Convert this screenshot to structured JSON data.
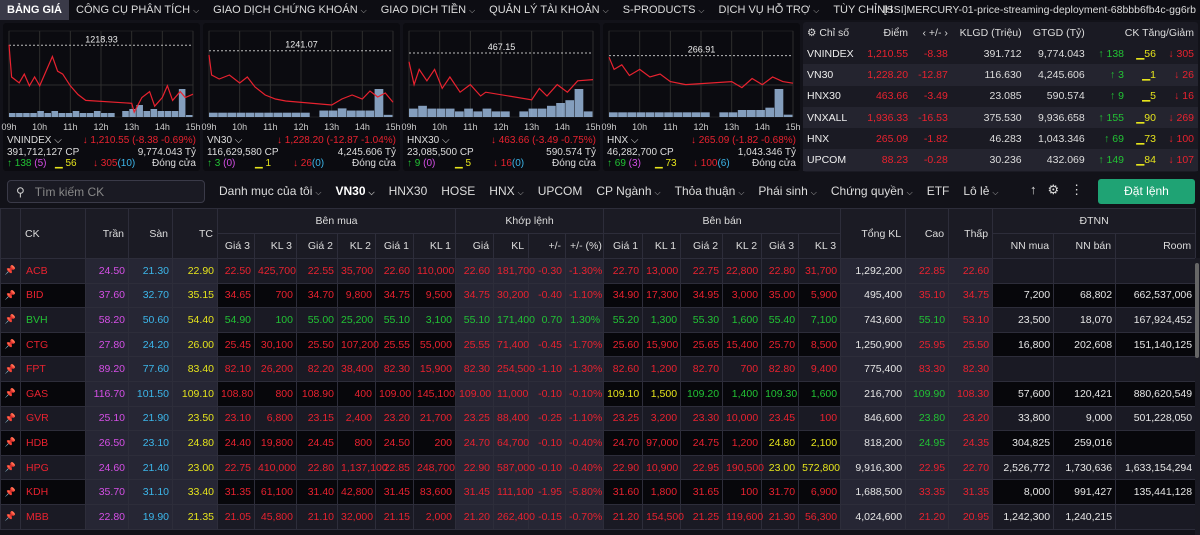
{
  "nav": {
    "items": [
      {
        "label": "BẢNG GIÁ",
        "active": true,
        "menu": false
      },
      {
        "label": "CÔNG CỤ PHÂN TÍCH",
        "menu": true
      },
      {
        "label": "GIAO DỊCH CHỨNG KHOÁN",
        "menu": true
      },
      {
        "label": "GIAO DỊCH TIỀN",
        "menu": true
      },
      {
        "label": "QUẢN LÝ TÀI KHOẢN",
        "menu": true
      },
      {
        "label": "S-PRODUCTS",
        "menu": true
      },
      {
        "label": "DỊCH VỤ HỖ TRỢ",
        "menu": true
      },
      {
        "label": "TÙY CHỈNH",
        "menu": false
      }
    ],
    "server": "[SSI]MERCURY-01-price-streaming-deployment-68bbb6fb4c-gg6rb"
  },
  "colors": {
    "up": "#22c234",
    "down": "#e8222f",
    "ref": "#e6e41c",
    "ceil": "#d54fe6",
    "floor": "#3cb6ea",
    "volume": "#9ab8dc",
    "accent": "#1fa374"
  },
  "charts": [
    {
      "name": "VNINDEX",
      "ref": 1218.93,
      "ref_label": "1218.93",
      "ymin": 1207,
      "ymax": 1220,
      "points": [
        [
          "09:00",
          1219
        ],
        [
          "09:05",
          1213.5
        ],
        [
          "09:20",
          1212.5
        ],
        [
          "09:30",
          1214
        ],
        [
          "09:40",
          1212
        ],
        [
          "09:50",
          1213.5
        ],
        [
          "10:00",
          1212
        ],
        [
          "10:15",
          1215
        ],
        [
          "10:25",
          1217
        ],
        [
          "10:35",
          1214.5
        ],
        [
          "10:45",
          1214
        ],
        [
          "11:00",
          1212
        ],
        [
          "11:15",
          1210.5
        ],
        [
          "11:30",
          1209.5
        ],
        [
          "13:00",
          1209
        ],
        [
          "13:05",
          1207.5
        ],
        [
          "13:20",
          1210
        ],
        [
          "13:35",
          1211
        ],
        [
          "13:45",
          1208.5
        ],
        [
          "14:00",
          1210
        ],
        [
          "14:10",
          1212
        ],
        [
          "14:20",
          1209.5
        ],
        [
          "14:35",
          1211
        ],
        [
          "14:45",
          1210
        ],
        [
          "15:00",
          1210.55
        ]
      ],
      "volume": [
        2,
        2,
        2,
        2,
        3,
        2,
        3,
        2,
        2,
        3,
        2,
        2,
        3,
        2,
        2,
        0,
        3,
        4,
        6,
        3,
        4,
        3,
        3,
        3,
        14,
        1
      ],
      "label": "VNINDEX",
      "change": "↓ 1,210.55 (-8.38 -0.69%)",
      "volume_text": "391,712,127 CP",
      "value_text": "9,774.043 Tỷ",
      "up": "↑ 138",
      "up_ceil": "(5)",
      "flat": "56",
      "down": "↓ 305",
      "down_floor": "(10)",
      "status": "Đóng cửa"
    },
    {
      "name": "VN30",
      "ref": 1241.07,
      "ref_label": "1241.07",
      "ymin": 1225,
      "ymax": 1244,
      "points": [
        [
          "09:00",
          1240
        ],
        [
          "09:05",
          1235
        ],
        [
          "09:20",
          1234
        ],
        [
          "09:40",
          1235
        ],
        [
          "10:00",
          1233
        ],
        [
          "10:15",
          1234.5
        ],
        [
          "10:30",
          1232
        ],
        [
          "10:50",
          1230
        ],
        [
          "11:10",
          1229
        ],
        [
          "11:30",
          1228.5
        ],
        [
          "13:00",
          1227.5
        ],
        [
          "13:20",
          1229
        ],
        [
          "13:40",
          1230
        ],
        [
          "14:00",
          1229
        ],
        [
          "14:15",
          1231
        ],
        [
          "14:30",
          1229.5
        ],
        [
          "14:45",
          1230.5
        ],
        [
          "15:00",
          1228.2
        ]
      ],
      "volume": [
        2,
        2,
        2,
        2,
        2,
        2,
        2,
        2,
        2,
        2,
        2,
        0,
        3,
        3,
        4,
        3,
        3,
        3,
        13,
        1
      ],
      "label": "VN30",
      "change": "↓ 1,228.20 (-12.87 -1.04%)",
      "volume_text": "116,629,580 CP",
      "value_text": "4,245.606 Tỷ",
      "up": "↑ 3",
      "up_ceil": "(0)",
      "flat": "1",
      "down": "↓ 26",
      "down_floor": "(0)",
      "status": "Đóng cửa"
    },
    {
      "name": "HNX30",
      "ref": 467.15,
      "ref_label": "467.15",
      "ymin": 459,
      "ymax": 469,
      "points": [
        [
          "09:00",
          466
        ],
        [
          "09:10",
          463
        ],
        [
          "09:20",
          465
        ],
        [
          "09:35",
          463.5
        ],
        [
          "09:50",
          465
        ],
        [
          "10:05",
          462.5
        ],
        [
          "10:20",
          464
        ],
        [
          "10:40",
          462
        ],
        [
          "11:00",
          463
        ],
        [
          "11:20",
          461.5
        ],
        [
          "11:30",
          462
        ],
        [
          "13:00",
          461
        ],
        [
          "13:15",
          462.5
        ],
        [
          "13:30",
          461.5
        ],
        [
          "13:50",
          463
        ],
        [
          "14:10",
          462
        ],
        [
          "14:30",
          463.5
        ],
        [
          "15:00",
          463.66
        ]
      ],
      "volume": [
        3,
        4,
        3,
        3,
        3,
        2,
        3,
        2,
        3,
        2,
        2,
        0,
        2,
        3,
        3,
        4,
        5,
        6,
        10,
        2
      ],
      "label": "HNX30",
      "change": "↓ 463.66 (-3.49 -0.75%)",
      "volume_text": "23,085,500 CP",
      "value_text": "590.574 Tỷ",
      "up": "↑ 9",
      "up_ceil": "(0)",
      "flat": "5",
      "down": "↓ 16",
      "down_floor": "(0)",
      "status": "Đóng cửa"
    },
    {
      "name": "HNX",
      "ref": 266.91,
      "ref_label": "266.91",
      "ymin": 263,
      "ymax": 268,
      "points": [
        [
          "09:00",
          266.8
        ],
        [
          "09:10",
          266
        ],
        [
          "09:25",
          266.3
        ],
        [
          "09:40",
          265.6
        ],
        [
          "10:00",
          266
        ],
        [
          "10:20",
          265.5
        ],
        [
          "10:40",
          265.7
        ],
        [
          "11:00",
          265.2
        ],
        [
          "11:30",
          265
        ],
        [
          "13:00",
          265.2
        ],
        [
          "13:20",
          264.8
        ],
        [
          "13:40",
          265.4
        ],
        [
          "14:00",
          265
        ],
        [
          "14:20",
          265.5
        ],
        [
          "14:40",
          265.2
        ],
        [
          "15:00",
          265.09
        ]
      ],
      "volume": [
        2,
        2,
        2,
        2,
        2,
        2,
        2,
        2,
        2,
        2,
        2,
        0,
        2,
        2,
        3,
        3,
        3,
        4,
        12,
        1
      ],
      "label": "HNX",
      "change": "↓ 265.09 (-1.82 -0.68%)",
      "volume_text": "46,282,700 CP",
      "value_text": "1,043.346 Tỷ",
      "up": "↑ 69",
      "up_ceil": "(3)",
      "flat": "73",
      "down": "↓ 100",
      "down_floor": "(6)",
      "status": "Đóng cửa"
    }
  ],
  "chart_hours": [
    "09h",
    "10h",
    "11h",
    "12h",
    "13h",
    "14h",
    "15h"
  ],
  "indices": {
    "headers": [
      "Chỉ số",
      "Điểm",
      "‹ +/- ›",
      "KLGD (Triệu)",
      "GTGD (Tỷ)",
      "CK Tăng/Giảm"
    ],
    "rows": [
      {
        "name": "VNINDEX",
        "point": "1,210.55",
        "change": "-8.38",
        "volume": "391.712",
        "value": "9,774.043",
        "up": "↑ 138",
        "flat": "56",
        "down": "↓ 305"
      },
      {
        "name": "VN30",
        "point": "1,228.20",
        "change": "-12.87",
        "volume": "116.630",
        "value": "4,245.606",
        "up": "↑ 3",
        "flat": "1",
        "down": "↓ 26"
      },
      {
        "name": "HNX30",
        "point": "463.66",
        "change": "-3.49",
        "volume": "23.085",
        "value": "590.574",
        "up": "↑ 9",
        "flat": "5",
        "down": "↓ 16"
      },
      {
        "name": "VNXALL",
        "point": "1,936.33",
        "change": "-16.53",
        "volume": "375.530",
        "value": "9,936.658",
        "up": "↑ 155",
        "flat": "90",
        "down": "↓ 269"
      },
      {
        "name": "HNX",
        "point": "265.09",
        "change": "-1.82",
        "volume": "46.283",
        "value": "1,043.346",
        "up": "↑ 69",
        "flat": "73",
        "down": "↓ 100"
      },
      {
        "name": "UPCOM",
        "point": "88.23",
        "change": "-0.28",
        "volume": "30.236",
        "value": "432.069",
        "up": "↑ 149",
        "flat": "84",
        "down": "↓ 107"
      }
    ]
  },
  "toolbar": {
    "search_placeholder": "Tìm kiếm CK",
    "tabs": [
      {
        "label": "Danh mục của tôi",
        "menu": true
      },
      {
        "label": "VN30",
        "menu": true,
        "active": true
      },
      {
        "label": "HNX30"
      },
      {
        "label": "HOSE"
      },
      {
        "label": "HNX",
        "menu": true
      },
      {
        "label": "UPCOM"
      },
      {
        "label": "CP Ngành",
        "menu": true
      },
      {
        "label": "Thỏa thuận",
        "menu": true
      },
      {
        "label": "Phái sinh",
        "menu": true
      },
      {
        "label": "Chứng quyền",
        "menu": true
      },
      {
        "label": "ETF"
      },
      {
        "label": "Lô lẻ",
        "menu": true
      }
    ],
    "order_label": "Đặt lệnh"
  },
  "board": {
    "groups": {
      "ck": "CK",
      "ceil": "Trần",
      "floor": "Sàn",
      "ref": "TC",
      "bid": "Bên mua",
      "match": "Khớp lệnh",
      "ask": "Bên bán",
      "total": "Tổng KL",
      "high": "Cao",
      "low": "Thấp",
      "foreign": "ĐTNN"
    },
    "bid_cols": [
      "Giá 3",
      "KL 3",
      "Giá 2",
      "KL 2",
      "Giá 1",
      "KL 1"
    ],
    "match_cols": [
      "Giá",
      "KL",
      "+/-",
      "+/- (%)"
    ],
    "ask_cols": [
      "Giá 1",
      "KL 1",
      "Giá 2",
      "KL 2",
      "Giá 3",
      "KL 3"
    ],
    "foreign_cols": [
      "NN mua",
      "NN bán",
      "Room"
    ],
    "rows": [
      {
        "sym": "ACB",
        "c": "down",
        "ceil": "24.50",
        "floor": "21.30",
        "ref": "22.90",
        "bid": [
          "22.50",
          "425,700",
          "22.55",
          "35,700",
          "22.60",
          "110,000"
        ],
        "match": [
          "22.60",
          "181,700",
          "-0.30",
          "-1.30%"
        ],
        "ask": [
          "22.70",
          "13,000",
          "22.75",
          "22,800",
          "22.80",
          "31,700"
        ],
        "total": "1,292,200",
        "high": "22.85",
        "high_c": "down",
        "low": "22.60",
        "low_c": "down",
        "nn": [
          "",
          "",
          ""
        ]
      },
      {
        "sym": "BID",
        "c": "down",
        "ceil": "37.60",
        "floor": "32.70",
        "ref": "35.15",
        "bid": [
          "34.65",
          "700",
          "34.70",
          "9,800",
          "34.75",
          "9,500"
        ],
        "match": [
          "34.75",
          "30,200",
          "-0.40",
          "-1.10%"
        ],
        "ask": [
          "34.90",
          "17,300",
          "34.95",
          "3,000",
          "35.00",
          "5,900"
        ],
        "total": "495,400",
        "high": "35.10",
        "high_c": "down",
        "low": "34.75",
        "low_c": "down",
        "nn": [
          "7,200",
          "68,802",
          "662,537,006"
        ]
      },
      {
        "sym": "BVH",
        "c": "up",
        "ceil": "58.20",
        "floor": "50.60",
        "ref": "54.40",
        "bid": [
          "54.90",
          "100",
          "55.00",
          "25,200",
          "55.10",
          "3,100"
        ],
        "match": [
          "55.10",
          "171,400",
          "0.70",
          "1.30%"
        ],
        "ask": [
          "55.20",
          "1,300",
          "55.30",
          "1,600",
          "55.40",
          "7,100"
        ],
        "total": "743,600",
        "high": "55.10",
        "high_c": "up",
        "low": "53.10",
        "low_c": "down",
        "nn": [
          "23,500",
          "18,070",
          "167,924,452"
        ]
      },
      {
        "sym": "CTG",
        "c": "down",
        "ceil": "27.80",
        "floor": "24.20",
        "ref": "26.00",
        "bid": [
          "25.45",
          "30,100",
          "25.50",
          "107,200",
          "25.55",
          "55,000"
        ],
        "match": [
          "25.55",
          "71,400",
          "-0.45",
          "-1.70%"
        ],
        "ask": [
          "25.60",
          "15,900",
          "25.65",
          "15,400",
          "25.70",
          "8,500"
        ],
        "total": "1,250,900",
        "high": "25.95",
        "high_c": "down",
        "low": "25.50",
        "low_c": "down",
        "nn": [
          "16,800",
          "202,608",
          "151,140,125"
        ]
      },
      {
        "sym": "FPT",
        "c": "down",
        "ceil": "89.20",
        "floor": "77.60",
        "ref": "83.40",
        "bid": [
          "82.10",
          "26,200",
          "82.20",
          "38,400",
          "82.30",
          "15,900"
        ],
        "match": [
          "82.30",
          "254,500",
          "-1.10",
          "-1.30%"
        ],
        "ask": [
          "82.60",
          "1,200",
          "82.70",
          "700",
          "82.80",
          "9,400"
        ],
        "total": "775,400",
        "high": "83.30",
        "high_c": "down",
        "low": "82.30",
        "low_c": "down",
        "nn": [
          "",
          "",
          ""
        ]
      },
      {
        "sym": "GAS",
        "c": "down",
        "ceil": "116.70",
        "floor": "101.50",
        "ref": "109.10",
        "bid": [
          "108.80",
          "800",
          "108.90",
          "400",
          "109.00",
          "145,100"
        ],
        "match": [
          "109.00",
          "11,000",
          "-0.10",
          "-0.10%"
        ],
        "ask": [
          "109.10",
          "1,500",
          "109.20",
          "1,400",
          "109.30",
          "1,600"
        ],
        "ask_c": [
          "ref",
          "ref",
          "up",
          "up",
          "up",
          "up"
        ],
        "total": "216,700",
        "high": "109.90",
        "high_c": "up",
        "low": "108.30",
        "low_c": "down",
        "nn": [
          "57,600",
          "120,421",
          "880,620,549"
        ]
      },
      {
        "sym": "GVR",
        "c": "down",
        "ceil": "25.10",
        "floor": "21.90",
        "ref": "23.50",
        "bid": [
          "23.10",
          "6,800",
          "23.15",
          "2,400",
          "23.20",
          "21,700"
        ],
        "match": [
          "23.25",
          "88,400",
          "-0.25",
          "-1.10%"
        ],
        "ask": [
          "23.25",
          "3,200",
          "23.30",
          "10,000",
          "23.45",
          "100"
        ],
        "total": "846,600",
        "high": "23.80",
        "high_c": "up",
        "low": "23.20",
        "low_c": "down",
        "nn": [
          "33,800",
          "9,000",
          "501,228,050"
        ]
      },
      {
        "sym": "HDB",
        "c": "down",
        "ceil": "26.50",
        "floor": "23.10",
        "ref": "24.80",
        "bid": [
          "24.40",
          "19,800",
          "24.45",
          "800",
          "24.50",
          "200"
        ],
        "match": [
          "24.70",
          "64,700",
          "-0.10",
          "-0.40%"
        ],
        "ask": [
          "24.70",
          "97,000",
          "24.75",
          "1,200",
          "24.80",
          "2,100"
        ],
        "ask_c": [
          "down",
          "down",
          "down",
          "down",
          "ref",
          "ref"
        ],
        "total": "818,200",
        "high": "24.95",
        "high_c": "up",
        "low": "24.35",
        "low_c": "down",
        "nn": [
          "304,825",
          "259,016",
          ""
        ]
      },
      {
        "sym": "HPG",
        "c": "down",
        "ceil": "24.60",
        "floor": "21.40",
        "ref": "23.00",
        "bid": [
          "22.75",
          "410,000",
          "22.80",
          "1,137,100",
          "22.85",
          "248,700"
        ],
        "match": [
          "22.90",
          "587,000",
          "-0.10",
          "-0.40%"
        ],
        "ask": [
          "22.90",
          "10,900",
          "22.95",
          "190,500",
          "23.00",
          "572,800"
        ],
        "ask_c": [
          "down",
          "down",
          "down",
          "down",
          "ref",
          "ref"
        ],
        "total": "9,916,300",
        "high": "22.95",
        "high_c": "down",
        "low": "22.70",
        "low_c": "down",
        "nn": [
          "2,526,772",
          "1,730,636",
          "1,633,154,294"
        ]
      },
      {
        "sym": "KDH",
        "c": "down",
        "ceil": "35.70",
        "floor": "31.10",
        "ref": "33.40",
        "bid": [
          "31.35",
          "61,100",
          "31.40",
          "42,800",
          "31.45",
          "83,600"
        ],
        "match": [
          "31.45",
          "111,100",
          "-1.95",
          "-5.80%"
        ],
        "ask": [
          "31.60",
          "1,800",
          "31.65",
          "100",
          "31.70",
          "6,900"
        ],
        "total": "1,688,500",
        "high": "33.35",
        "high_c": "down",
        "low": "31.35",
        "low_c": "down",
        "nn": [
          "8,000",
          "991,427",
          "135,441,128"
        ]
      },
      {
        "sym": "MBB",
        "c": "down",
        "ceil": "22.80",
        "floor": "19.90",
        "ref": "21.35",
        "bid": [
          "21.05",
          "45,800",
          "21.10",
          "32,000",
          "21.15",
          "2,000"
        ],
        "match": [
          "21.20",
          "262,400",
          "-0.15",
          "-0.70%"
        ],
        "ask": [
          "21.20",
          "154,500",
          "21.25",
          "119,600",
          "21.30",
          "56,300"
        ],
        "total": "4,024,600",
        "high": "21.20",
        "high_c": "down",
        "low": "20.95",
        "low_c": "down",
        "nn": [
          "1,242,300",
          "1,240,215",
          ""
        ]
      }
    ]
  }
}
